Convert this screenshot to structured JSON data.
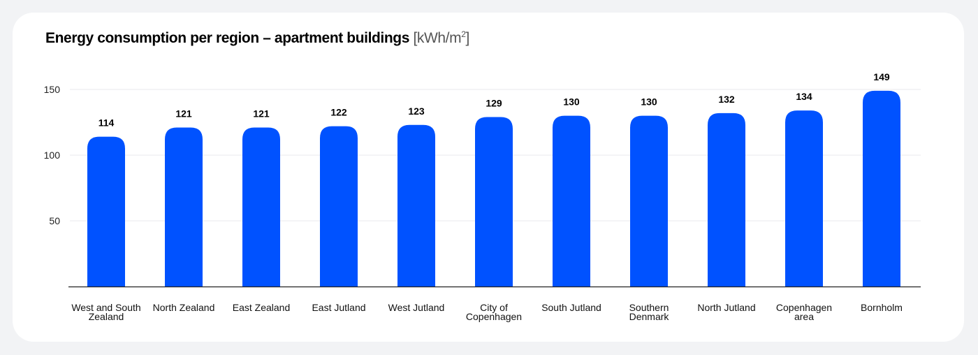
{
  "chart_data": {
    "type": "bar",
    "title": "Energy consumption per region – apartment buildings",
    "unit": "[kWh/m",
    "unit_sup": "2",
    "unit_end": "]",
    "xlabel": "",
    "ylabel": "",
    "ylim": [
      0,
      160
    ],
    "yticks": [
      50,
      100,
      150
    ],
    "grid": true,
    "legend": "none",
    "bar_color": "#0052ff",
    "categories": [
      "West and South Zealand",
      "North Zealand",
      "East Zealand",
      "East Jutland",
      "West Jutland",
      "City of Copenhagen",
      "South Jutland",
      "Southern Denmark",
      "North Jutland",
      "Copenhagen area",
      "Bornholm"
    ],
    "category_lines": [
      [
        "West and South",
        "Zealand"
      ],
      [
        "North Zealand"
      ],
      [
        "East Zealand"
      ],
      [
        "East Jutland"
      ],
      [
        "West Jutland"
      ],
      [
        "City of",
        "Copenhagen"
      ],
      [
        "South Jutland"
      ],
      [
        "Southern",
        "Denmark"
      ],
      [
        "North Jutland"
      ],
      [
        "Copenhagen",
        "area"
      ],
      [
        "Bornholm"
      ]
    ],
    "values": [
      114,
      121,
      121,
      122,
      123,
      129,
      130,
      130,
      132,
      134,
      149
    ]
  }
}
